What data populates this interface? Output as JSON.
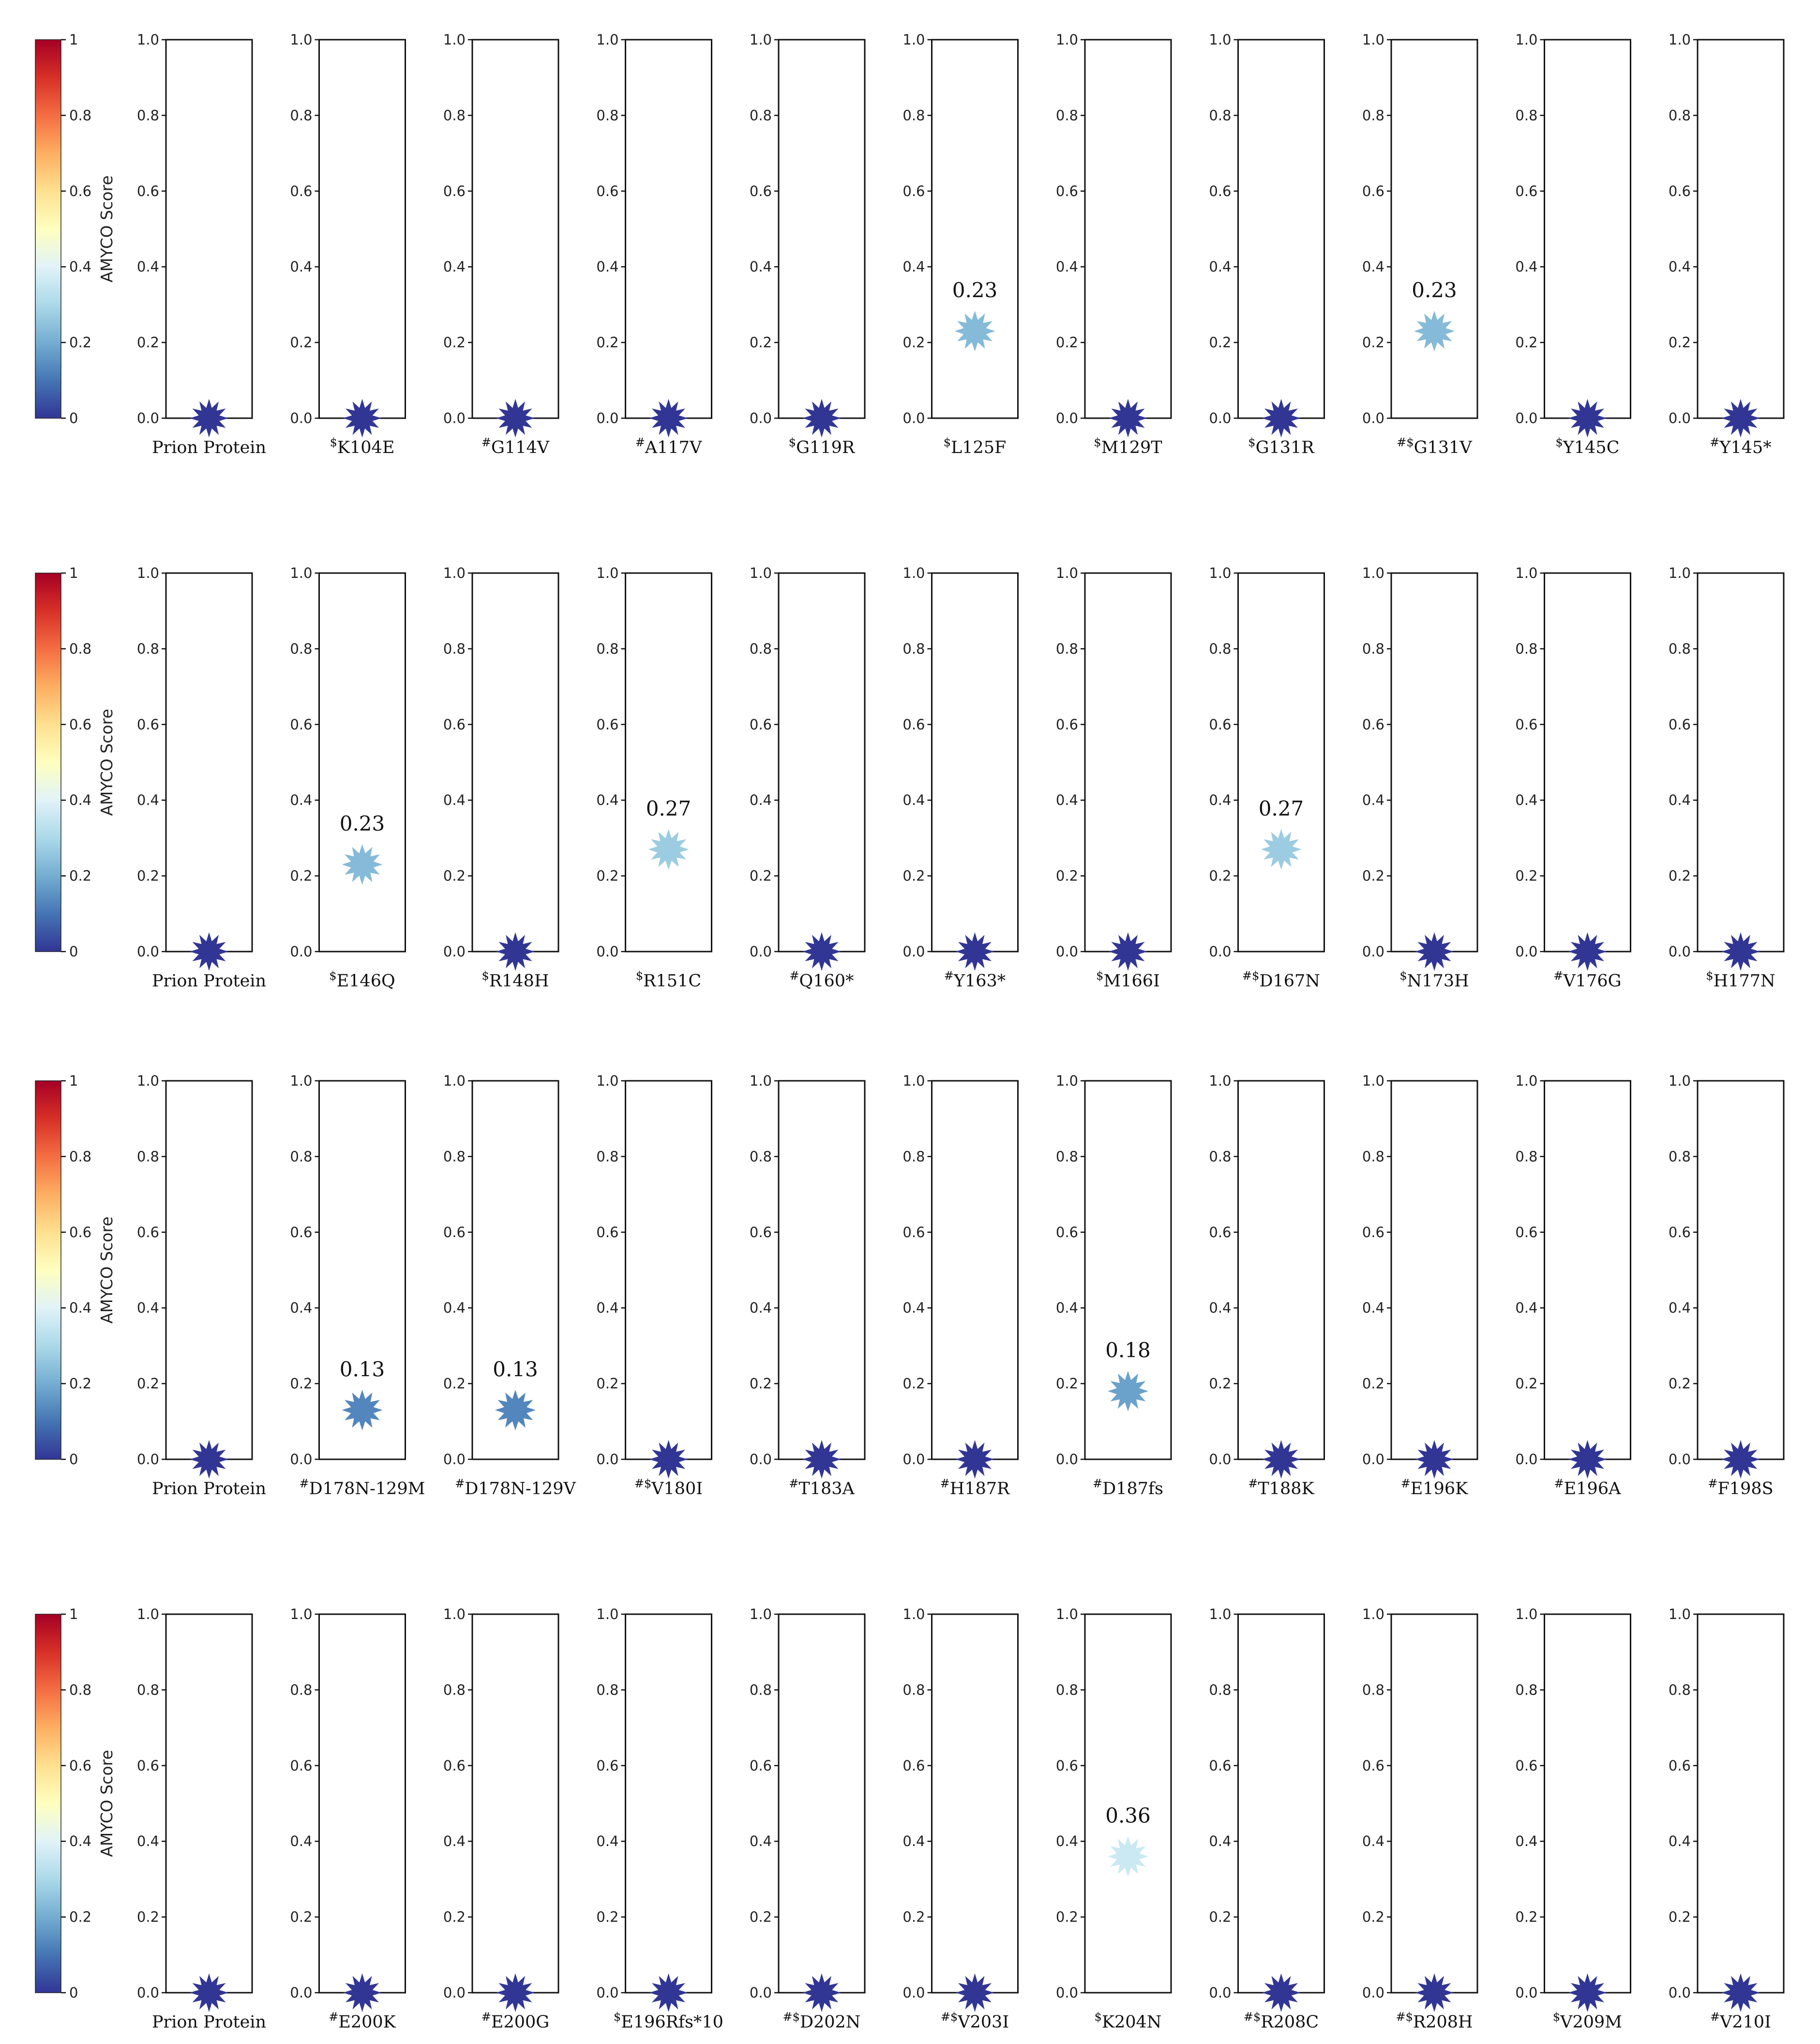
{
  "colorbar": {
    "label": "AMYCO Score",
    "ticks": [
      "0",
      "0.2",
      "0.4",
      "0.6",
      "0.8",
      "1"
    ],
    "colors": [
      "#313695",
      "#4575b4",
      "#74add1",
      "#abd9e9",
      "#e0f3f8",
      "#ffffbf",
      "#fee090",
      "#fdae61",
      "#f46d43",
      "#d73027",
      "#a50026"
    ]
  },
  "axis": {
    "ylim": [
      0,
      1
    ],
    "yticks": [
      "0.0",
      "0.2",
      "0.4",
      "0.6",
      "0.8",
      "1.0"
    ]
  },
  "marker": "star-burst",
  "chart_data": [
    {
      "type": "scatter",
      "title": "",
      "ylabel": "AMYCO Score",
      "ylim": [
        0,
        1
      ],
      "categories": [
        "Prion Protein",
        "$K104E",
        "#G114V",
        "#A117V",
        "$G119R",
        "$L125F",
        "$M129T",
        "$G131R",
        "#$G131V",
        "$Y145C",
        "#Y145*"
      ],
      "values": [
        0,
        0,
        0,
        0,
        0,
        0.23,
        0,
        0,
        0.23,
        0,
        0
      ],
      "data_labels": [
        "",
        "",
        "",
        "",
        "",
        "0.23",
        "",
        "",
        "0.23",
        "",
        ""
      ]
    },
    {
      "type": "scatter",
      "title": "",
      "ylabel": "AMYCO Score",
      "ylim": [
        0,
        1
      ],
      "categories": [
        "Prion Protein",
        "$E146Q",
        "$R148H",
        "$R151C",
        "#Q160*",
        "#Y163*",
        "$M166I",
        "#$D167N",
        "$N173H",
        "#V176G",
        "$H177N"
      ],
      "values": [
        0,
        0.23,
        0,
        0.27,
        0,
        0,
        0,
        0.27,
        0,
        0,
        0
      ],
      "data_labels": [
        "",
        "0.23",
        "",
        "0.27",
        "",
        "",
        "",
        "0.27",
        "",
        "",
        ""
      ]
    },
    {
      "type": "scatter",
      "title": "",
      "ylabel": "AMYCO Score",
      "ylim": [
        0,
        1
      ],
      "categories": [
        "Prion Protein",
        "#D178N-129M",
        "#D178N-129V",
        "#$V180I",
        "#T183A",
        "#H187R",
        "#D187fs",
        "#T188K",
        "#E196K",
        "#E196A",
        "#F198S"
      ],
      "values": [
        0,
        0.13,
        0.13,
        0,
        0,
        0,
        0.18,
        0,
        0,
        0,
        0
      ],
      "data_labels": [
        "",
        "0.13",
        "0.13",
        "",
        "",
        "",
        "0.18",
        "",
        "",
        "",
        ""
      ]
    },
    {
      "type": "scatter",
      "title": "",
      "ylabel": "AMYCO Score",
      "ylim": [
        0,
        1
      ],
      "categories": [
        "Prion Protein",
        "#E200K",
        "#E200G",
        "$E196Rfs*10",
        "#$D202N",
        "#$V203I",
        "$K204N",
        "#$R208C",
        "#$R208H",
        "$V209M",
        "#V210I"
      ],
      "values": [
        0,
        0,
        0,
        0,
        0,
        0,
        0.36,
        0,
        0,
        0,
        0
      ],
      "data_labels": [
        "",
        "",
        "",
        "",
        "",
        "",
        "0.36",
        "",
        "",
        "",
        ""
      ]
    }
  ]
}
